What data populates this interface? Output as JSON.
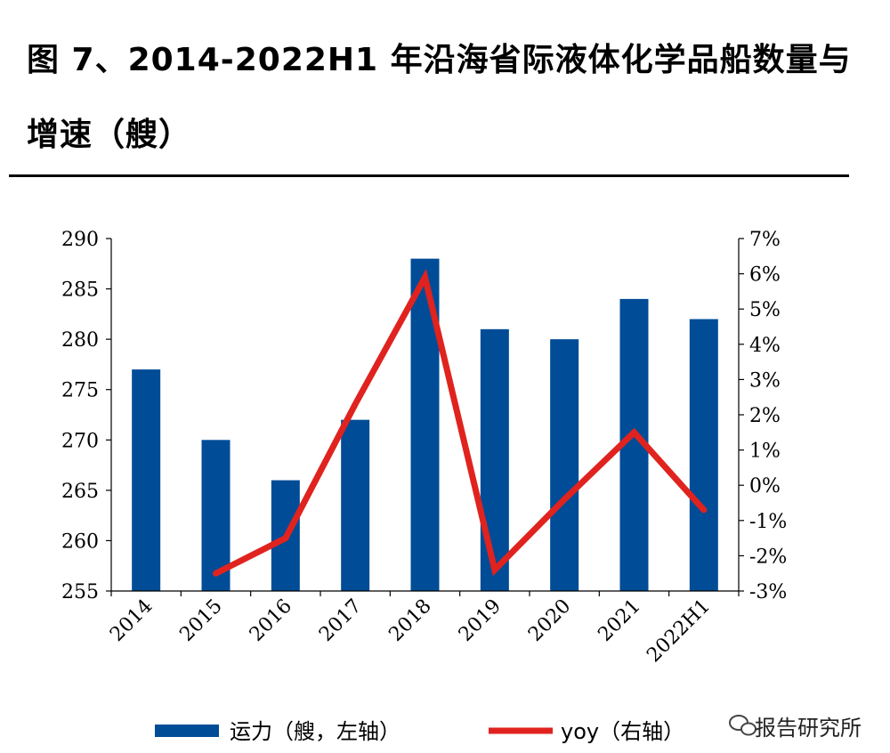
{
  "title_line1": "图 7、2014-2022H1 年沿海省际液体化学品船数量与",
  "title_line2": "增速（艘）",
  "watermark": "报告研究所",
  "colors": {
    "bar": "#004C97",
    "line": "#E0231E"
  },
  "chart_data": {
    "type": "bar",
    "categories": [
      "2014",
      "2015",
      "2016",
      "2017",
      "2018",
      "2019",
      "2020",
      "2021",
      "2022H1"
    ],
    "series": [
      {
        "name": "运力（艘，左轴）",
        "type": "bar",
        "axis": "left",
        "values": [
          277,
          270,
          266,
          272,
          288,
          281,
          280,
          284,
          282
        ]
      },
      {
        "name": "yoy（右轴）",
        "type": "line",
        "axis": "right",
        "values": [
          null,
          -2.5,
          -1.5,
          2.3,
          5.9,
          -2.4,
          -0.4,
          1.5,
          -0.7
        ]
      }
    ],
    "y_left": {
      "min": 255,
      "max": 290,
      "ticks": [
        "255",
        "260",
        "265",
        "270",
        "275",
        "280",
        "285",
        "290"
      ]
    },
    "y_right": {
      "min": -3,
      "max": 7,
      "ticks": [
        "-3%",
        "-2%",
        "-1%",
        "0%",
        "1%",
        "2%",
        "3%",
        "4%",
        "5%",
        "6%",
        "7%"
      ]
    },
    "grid": false,
    "legend_position": "bottom"
  }
}
